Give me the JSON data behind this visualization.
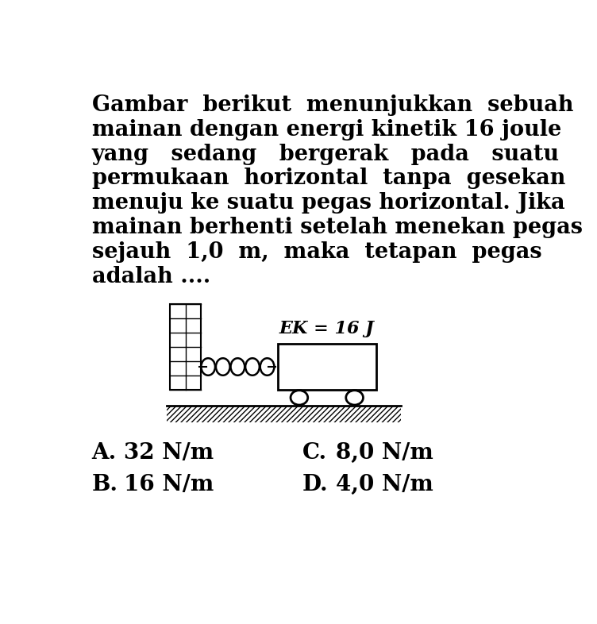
{
  "lines": [
    "Gambar  berikut  menunjukkan  sebuah",
    "mainan dengan energi kinetik 16 joule",
    "yang   sedang   bergerak   pada   suatu",
    "permukaan  horizontal  tanpa  gesekan",
    "menuju ke suatu pegas horizontal. Jika",
    "mainan berhenti setelah menekan pegas",
    "sejauh  1,0  m,  maka  tetapan  pegas",
    "adalah ...."
  ],
  "ek_label": "EK = 16 J",
  "options": [
    [
      "A.",
      "32 N/m",
      "C.",
      "8,0 N/m"
    ],
    [
      "B.",
      "16 N/m",
      "D.",
      "4,0 N/m"
    ]
  ],
  "bg_color": "#ffffff",
  "text_color": "#000000",
  "font_size_body": 19.5,
  "font_size_options": 20,
  "font_size_ek": 16
}
